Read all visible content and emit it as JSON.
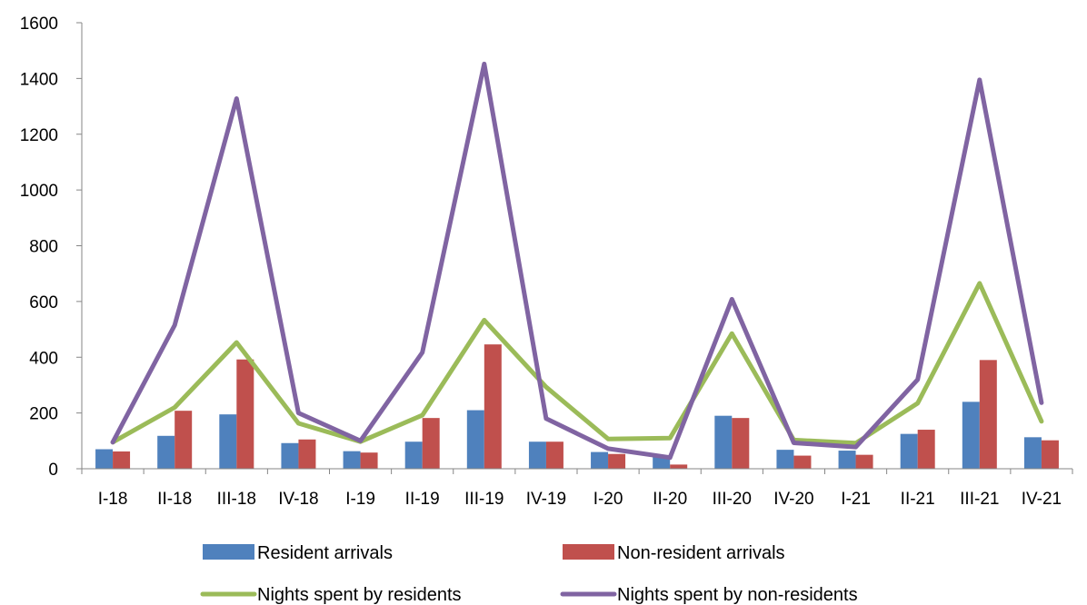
{
  "chart_data": {
    "type": "bar",
    "categories": [
      "I-18",
      "II-18",
      "III-18",
      "IV-18",
      "I-19",
      "II-19",
      "III-19",
      "IV-19",
      "I-20",
      "II-20",
      "III-20",
      "IV-20",
      "I-21",
      "II-21",
      "III-21",
      "IV-21"
    ],
    "ylim": [
      0,
      1600
    ],
    "yticks": [
      0,
      200,
      400,
      600,
      800,
      1000,
      1200,
      1400,
      1600
    ],
    "grid": false,
    "legend_position": "bottom",
    "series": [
      {
        "name": "Resident arrivals",
        "kind": "bar",
        "color": "#4f81bd",
        "values": [
          70,
          118,
          195,
          92,
          63,
          97,
          210,
          97,
          60,
          42,
          190,
          68,
          65,
          125,
          240,
          113
        ]
      },
      {
        "name": "Non-resident arrivals",
        "kind": "bar",
        "color": "#c0504d",
        "values": [
          62,
          208,
          392,
          105,
          58,
          182,
          446,
          97,
          53,
          15,
          182,
          47,
          50,
          140,
          390,
          102
        ]
      },
      {
        "name": "Nights spent by residents",
        "kind": "line",
        "color": "#9bbb59",
        "values": [
          95,
          220,
          453,
          163,
          97,
          192,
          533,
          293,
          107,
          110,
          485,
          103,
          92,
          235,
          665,
          170
        ]
      },
      {
        "name": "Nights spent by non-residents",
        "kind": "line",
        "color": "#8064a2",
        "values": [
          95,
          515,
          1328,
          200,
          100,
          417,
          1452,
          180,
          72,
          40,
          608,
          93,
          78,
          320,
          1395,
          237
        ]
      }
    ]
  }
}
